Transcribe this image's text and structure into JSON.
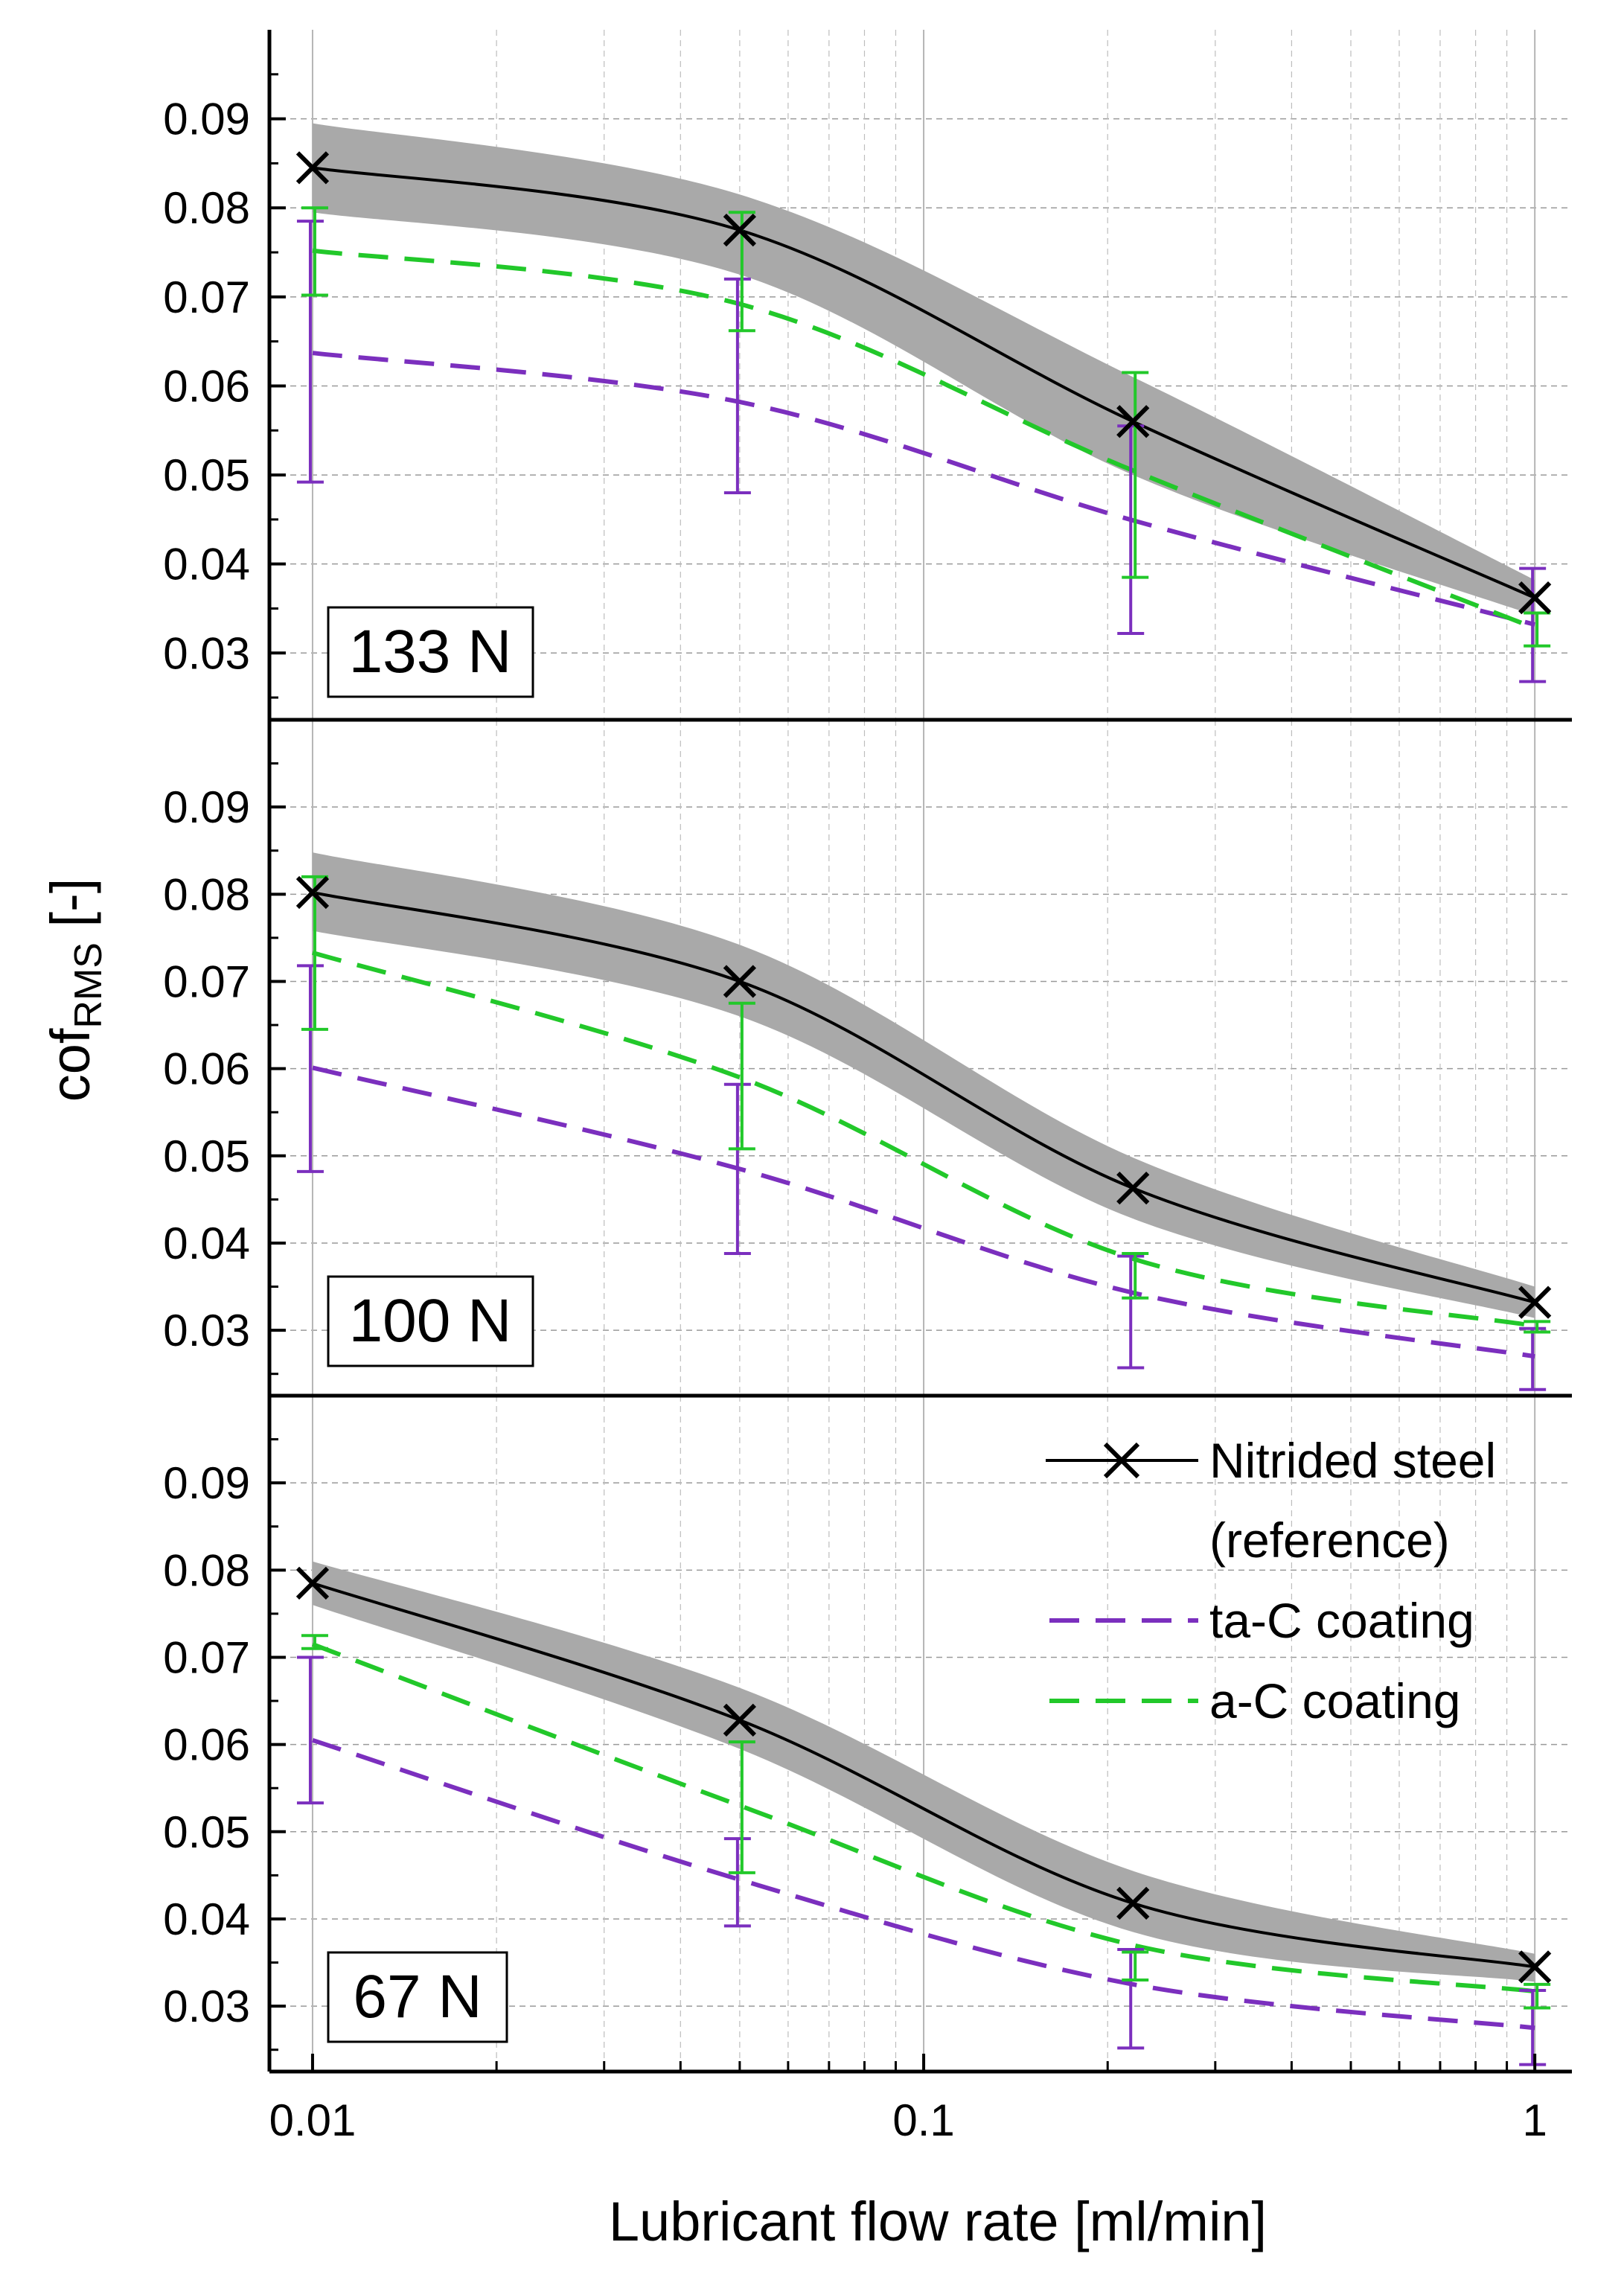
{
  "chart_data": {
    "type": "line",
    "xscale": "log",
    "xlabel": "Lubricant flow rate [ml/min]",
    "ylabel_main": "cof",
    "ylabel_sub": "RMS",
    "ylabel_unit": " [-]",
    "xlim": [
      0.0085,
      1.15
    ],
    "ylim": [
      0.0225,
      0.1
    ],
    "x_ticks": [
      0.01,
      0.1,
      1
    ],
    "x_tick_labels": [
      "0.01",
      "0.1",
      "1"
    ],
    "y_ticks": [
      0.03,
      0.04,
      0.05,
      0.06,
      0.07,
      0.08,
      0.09
    ],
    "y_tick_labels": [
      "0.03",
      "0.04",
      "0.05",
      "0.06",
      "0.07",
      "0.08",
      "0.09"
    ],
    "grid": true,
    "legend": {
      "placement": "top-right of bottom panel",
      "items": [
        {
          "series": "nitrided",
          "lines": [
            "Nitrided steel",
            "(reference)"
          ]
        },
        {
          "series": "tac",
          "lines": [
            "ta-C coating"
          ]
        },
        {
          "series": "ac",
          "lines": [
            "a-C coating"
          ]
        }
      ]
    },
    "series_style": {
      "nitrided": {
        "name": "Nitrided steel (reference)",
        "color": "#000000",
        "band_color": "#a9a9a9",
        "marker": "x",
        "dash": "solid"
      },
      "tac": {
        "name": "ta-C coating",
        "color": "#7b2fbe",
        "dash": "dashed"
      },
      "ac": {
        "name": "a-C coating",
        "color": "#22c82a",
        "dash": "dashed"
      }
    },
    "panels": [
      {
        "label": "133 N",
        "x": [
          0.01,
          0.05,
          0.22,
          1
        ],
        "nitrided": {
          "values": [
            0.0845,
            0.0775,
            0.056,
            0.0362
          ],
          "band_upper": [
            0.0895,
            0.0815,
            0.061,
            0.0382
          ],
          "band_lower": [
            0.0795,
            0.0725,
            0.05,
            0.0342
          ]
        },
        "tac": {
          "values": [
            0.0637,
            0.0582,
            0.0449,
            0.0332
          ],
          "err_upper": [
            0.0785,
            0.072,
            0.0555,
            0.0395
          ],
          "err_lower": [
            0.0492,
            0.048,
            0.0322,
            0.0268
          ]
        },
        "ac": {
          "values": [
            0.0752,
            0.0692,
            0.0505,
            0.0328
          ],
          "err_upper": [
            0.08,
            0.0795,
            0.0615,
            0.0345
          ],
          "err_lower": [
            0.0702,
            0.0662,
            0.0385,
            0.0308
          ]
        }
      },
      {
        "label": "100 N",
        "x": [
          0.01,
          0.05,
          0.22,
          1
        ],
        "nitrided": {
          "values": [
            0.0802,
            0.07,
            0.0463,
            0.0332
          ],
          "band_upper": [
            0.0848,
            0.0742,
            0.0498,
            0.035
          ],
          "band_lower": [
            0.0758,
            0.066,
            0.0428,
            0.0314
          ]
        },
        "tac": {
          "values": [
            0.0601,
            0.0485,
            0.0343,
            0.027
          ],
          "err_upper": [
            0.0718,
            0.0582,
            0.0385,
            0.0302
          ],
          "err_lower": [
            0.0482,
            0.0388,
            0.0257,
            0.0232
          ]
        },
        "ac": {
          "values": [
            0.0733,
            0.059,
            0.0382,
            0.0305
          ],
          "err_upper": [
            0.082,
            0.0675,
            0.0388,
            0.031
          ],
          "err_lower": [
            0.0645,
            0.0508,
            0.0337,
            0.0298
          ]
        }
      },
      {
        "label": "67 N",
        "x": [
          0.01,
          0.05,
          0.22,
          1
        ],
        "nitrided": {
          "values": [
            0.0785,
            0.0628,
            0.0418,
            0.0345
          ],
          "band_upper": [
            0.081,
            0.0665,
            0.0455,
            0.036
          ],
          "band_lower": [
            0.076,
            0.0595,
            0.0385,
            0.0328
          ]
        },
        "tac": {
          "values": [
            0.0605,
            0.0445,
            0.0325,
            0.0275
          ],
          "err_upper": [
            0.07,
            0.0492,
            0.0365,
            0.0318
          ],
          "err_lower": [
            0.0533,
            0.0392,
            0.0252,
            0.0233
          ]
        },
        "ac": {
          "values": [
            0.0715,
            0.053,
            0.037,
            0.0317
          ],
          "err_upper": [
            0.0725,
            0.0603,
            0.0362,
            0.0325
          ],
          "err_lower": [
            0.071,
            0.0453,
            0.033,
            0.0298
          ]
        }
      }
    ]
  }
}
